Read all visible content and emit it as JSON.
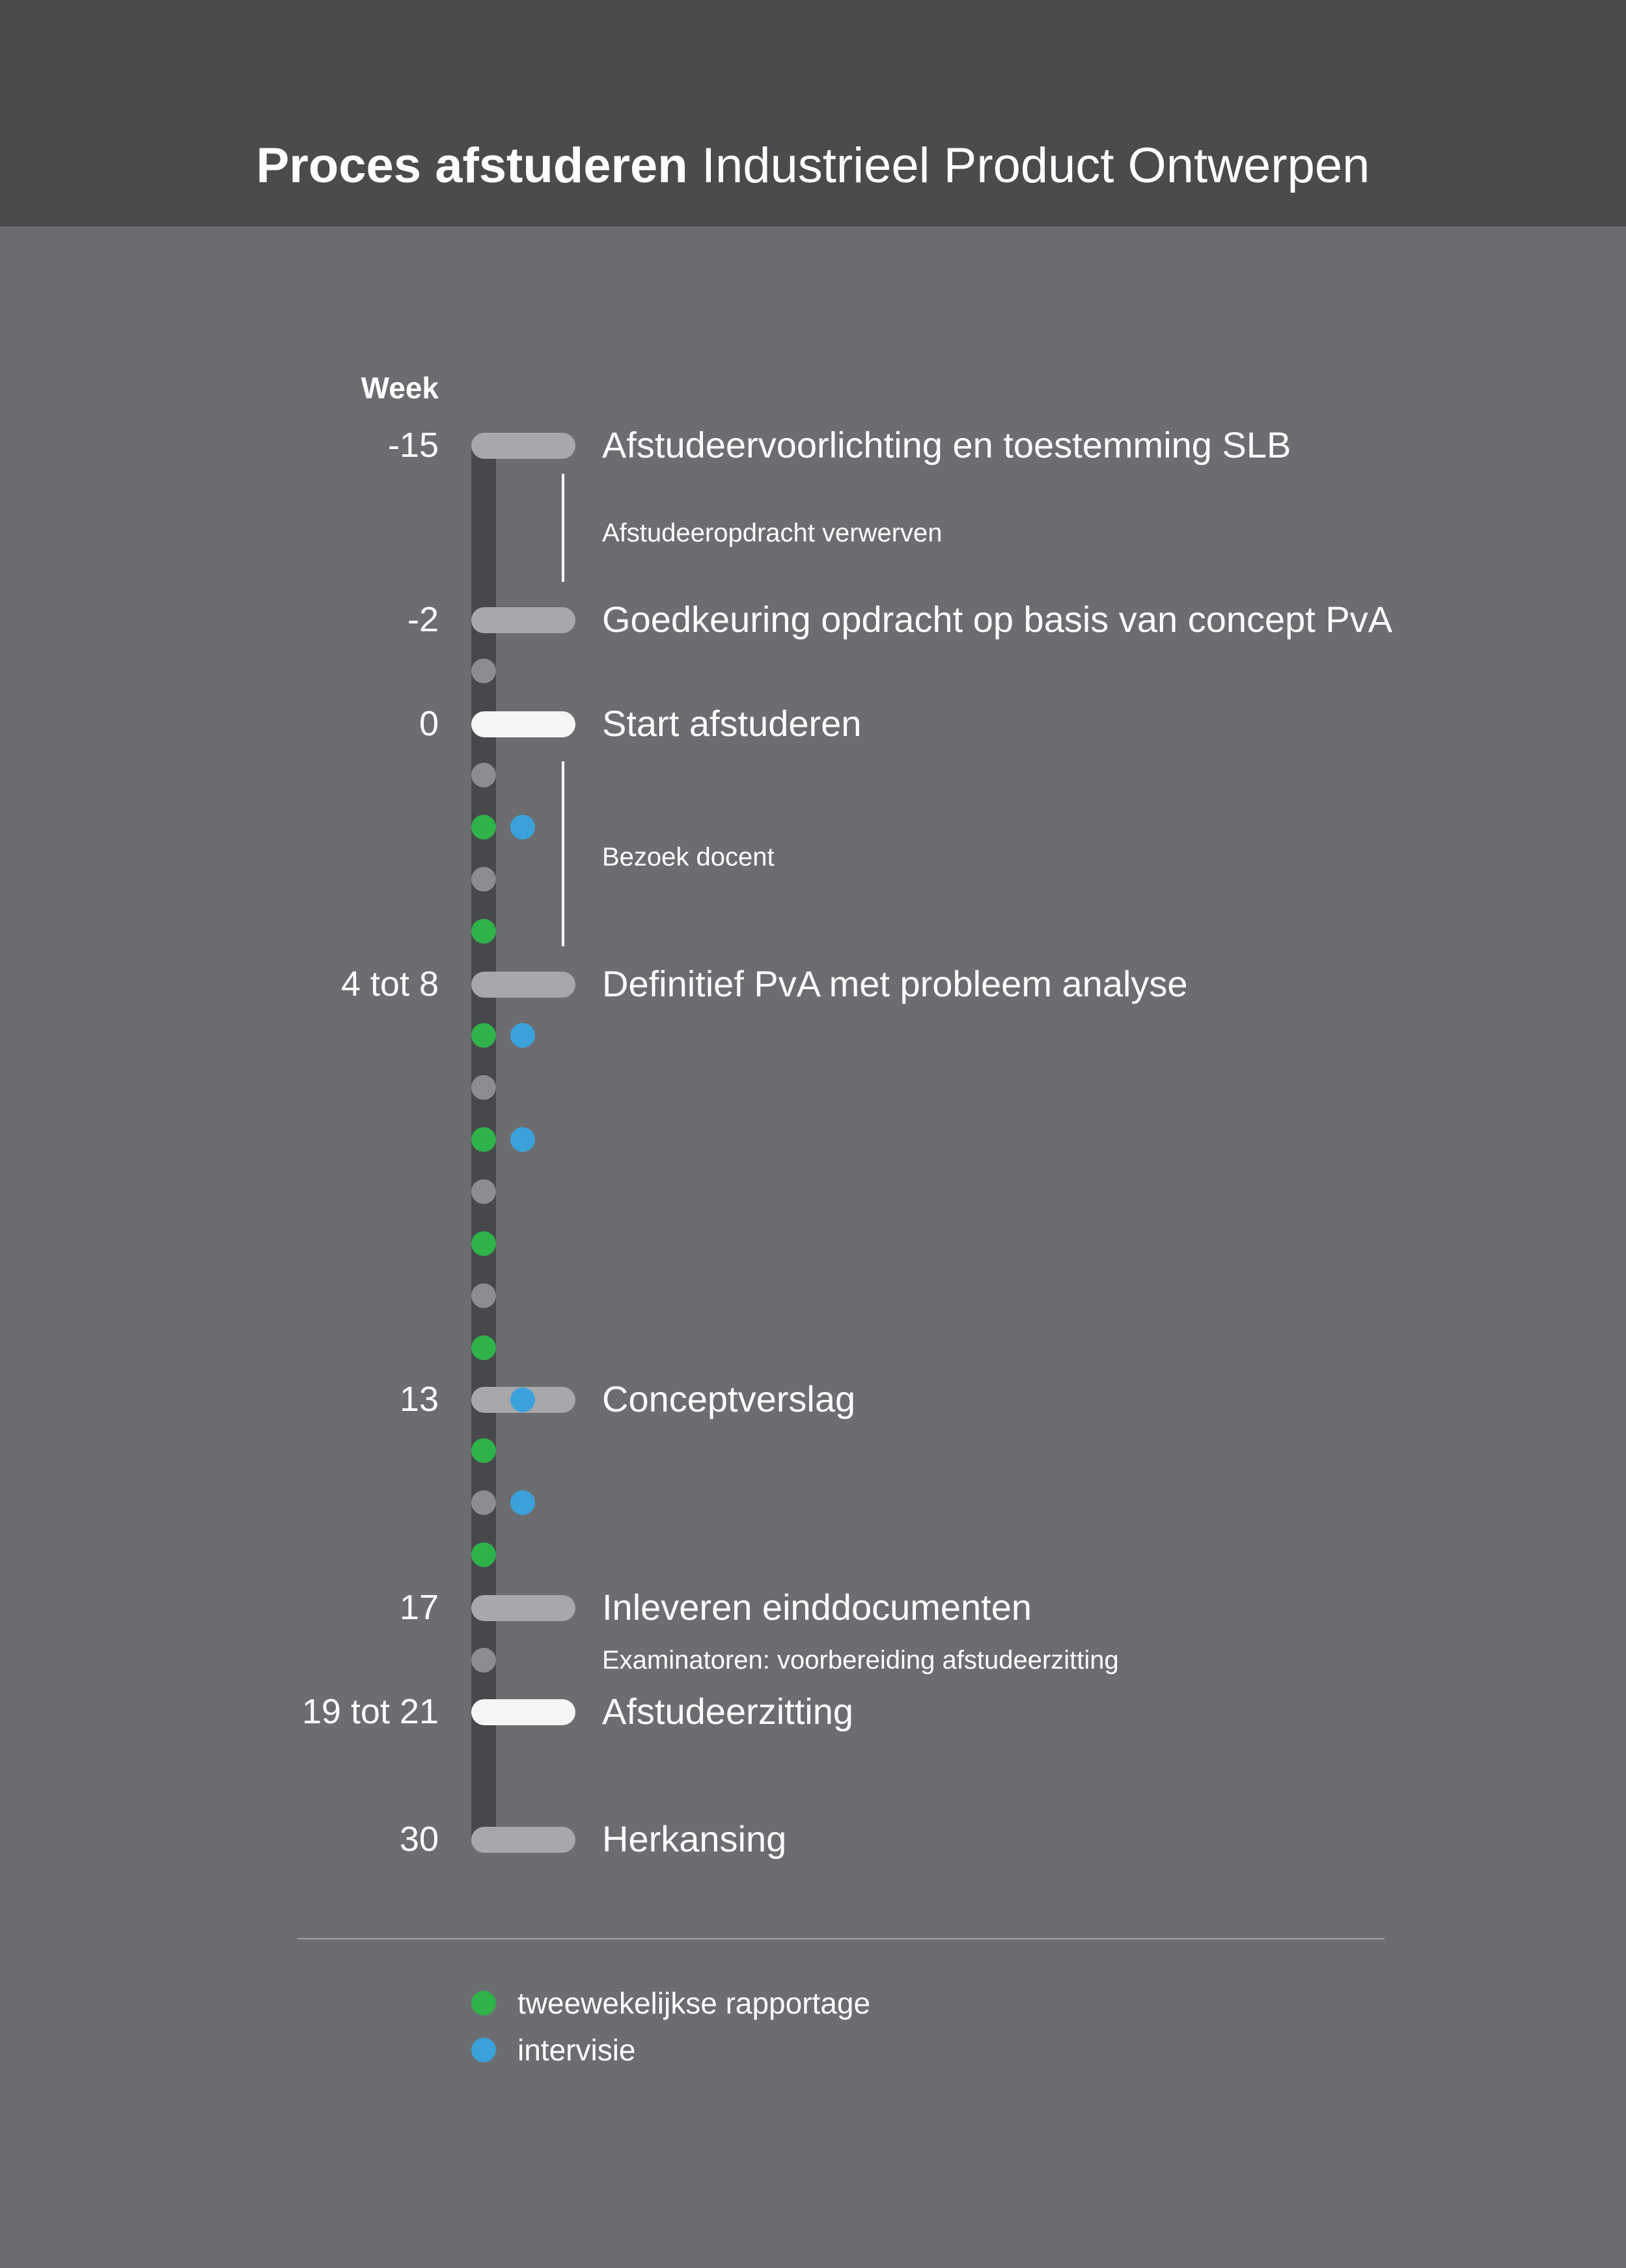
{
  "title": {
    "bold": "Proces afstuderen",
    "light": "Industrieel Product Ontwerpen"
  },
  "week_header": "Week",
  "milestones": [
    {
      "week": "-15",
      "label": "Afstudeervoorlichting en toestemming SLB",
      "style": "grey"
    },
    {
      "week": "-2",
      "label": "Goedkeuring opdracht op basis van concept PvA",
      "style": "grey"
    },
    {
      "week": "0",
      "label": "Start afstuderen",
      "style": "white"
    },
    {
      "week": "4 tot 8",
      "label": "Definitief PvA met probleem analyse",
      "style": "grey"
    },
    {
      "week": "13",
      "label": "Conceptverslag",
      "style": "grey"
    },
    {
      "week": "17",
      "label": "Inleveren einddocumenten",
      "style": "grey"
    },
    {
      "week": "19 tot 21",
      "label": "Afstudeerzitting",
      "style": "white"
    },
    {
      "week": "30",
      "label": "Herkansing",
      "style": "grey"
    }
  ],
  "periods": [
    {
      "label": "Afstudeeropdracht verwerven"
    },
    {
      "label": "Bezoek docent"
    },
    {
      "label": "Examinatoren: voorbereiding afstudeerzitting"
    }
  ],
  "weekly_markers": [
    {
      "type": "grey",
      "intervisie": false
    },
    {
      "type": "grey",
      "intervisie": false
    },
    {
      "type": "green",
      "intervisie": true
    },
    {
      "type": "grey",
      "intervisie": false
    },
    {
      "type": "green",
      "intervisie": false
    },
    {
      "type": "green",
      "intervisie": true
    },
    {
      "type": "grey",
      "intervisie": false
    },
    {
      "type": "green",
      "intervisie": true
    },
    {
      "type": "grey",
      "intervisie": false
    },
    {
      "type": "green",
      "intervisie": false
    },
    {
      "type": "grey",
      "intervisie": false
    },
    {
      "type": "green",
      "intervisie": false
    },
    {
      "type": "none",
      "intervisie": true
    },
    {
      "type": "green",
      "intervisie": false
    },
    {
      "type": "grey",
      "intervisie": true
    },
    {
      "type": "green",
      "intervisie": false
    },
    {
      "type": "grey",
      "intervisie": false
    }
  ],
  "legend": [
    {
      "label": "tweewekelijkse rapportage",
      "color": "#2fb24a"
    },
    {
      "label": "intervisie",
      "color": "#3ba1da"
    }
  ],
  "colors": {
    "header": "#4a4b4d",
    "background": "#6c6d71",
    "green": "#2fb24a",
    "blue": "#3ba1da",
    "grey_dot": "#8c8d90",
    "milestone_grey": "#a7a8ab",
    "milestone_white": "#f5f5f5"
  }
}
